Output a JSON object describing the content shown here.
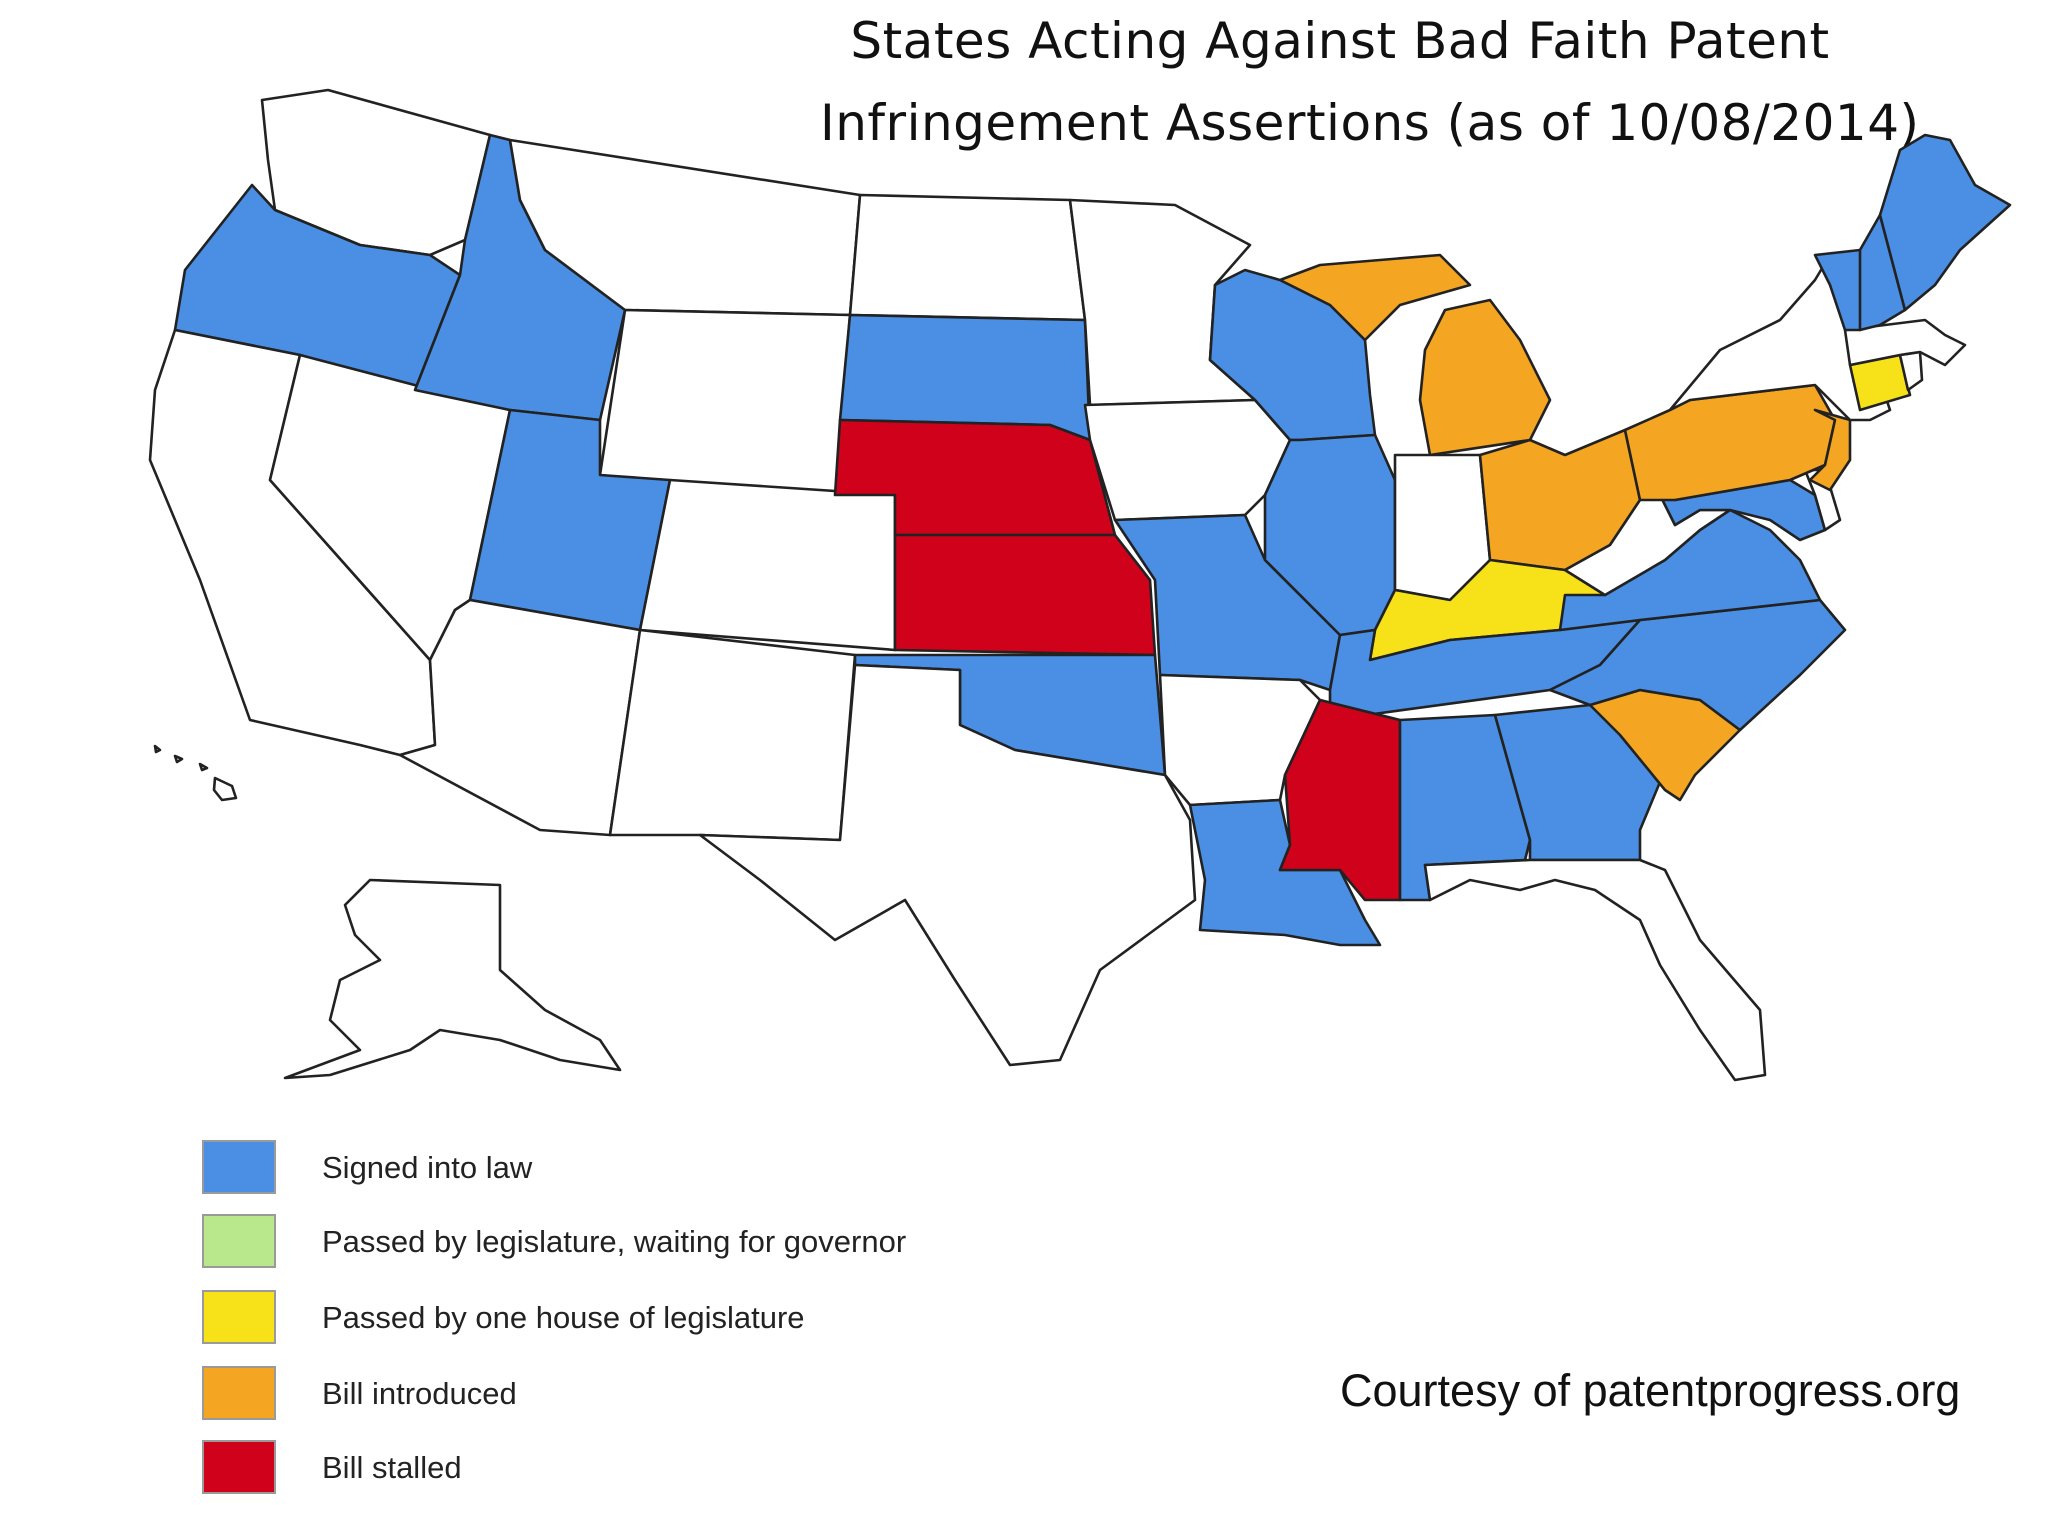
{
  "title": {
    "line1": "States Acting Against Bad Faith Patent",
    "line2": "Infringement Assertions (as of 10/08/2014)"
  },
  "colors": {
    "signed": "#4a8fe3",
    "waiting": "#b9e88c",
    "one_house": "#f7e21a",
    "introduced": "#f4a521",
    "stalled": "#d0021b",
    "none": "#ffffff"
  },
  "legend": [
    {
      "label": "Signed into law",
      "color": "#4a8fe3"
    },
    {
      "label": "Passed by legislature, waiting for governor",
      "color": "#b9e88c"
    },
    {
      "label": "Passed by one house of legislature",
      "color": "#f7e21a"
    },
    {
      "label": "Bill introduced",
      "color": "#f4a521"
    },
    {
      "label": "Bill stalled",
      "color": "#d0021b"
    }
  ],
  "states": {
    "WA": "none",
    "OR": "signed",
    "CA": "none",
    "NV": "none",
    "ID": "signed",
    "MT": "none",
    "WY": "none",
    "UT": "signed",
    "AZ": "none",
    "CO": "none",
    "NM": "none",
    "ND": "none",
    "SD": "signed",
    "NE": "stalled",
    "KS": "stalled",
    "OK": "signed",
    "TX": "none",
    "MN": "none",
    "IA": "none",
    "MO": "signed",
    "AR": "none",
    "LA": "signed",
    "WI": "signed",
    "IL": "signed",
    "MI": "introduced",
    "IN": "none",
    "OH": "introduced",
    "KY": "one_house",
    "TN": "signed",
    "MS": "stalled",
    "AL": "signed",
    "GA": "signed",
    "FL": "none",
    "SC": "introduced",
    "NC": "signed",
    "VA": "signed",
    "WV": "none",
    "MD": "signed",
    "DE": "none",
    "NJ": "introduced",
    "PA": "introduced",
    "NY": "none",
    "CT": "one_house",
    "RI": "none",
    "MA": "none",
    "VT": "signed",
    "NH": "signed",
    "ME": "signed",
    "AK": "none",
    "HI": "none"
  },
  "credit": "Courtesy of patentprogress.org"
}
